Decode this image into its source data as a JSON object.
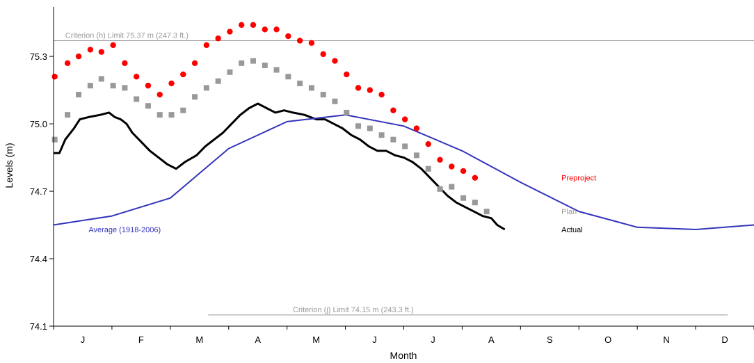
{
  "chart_data": {
    "type": "line",
    "title": "",
    "xlabel": "Month",
    "ylabel": "Levels (m)",
    "ylim": [
      74.1,
      75.52
    ],
    "xlim": [
      0,
      12
    ],
    "yticks": [
      "74.1",
      "74.4",
      "74.7",
      "75.0",
      "75.3"
    ],
    "month_labels": [
      "J",
      "F",
      "M",
      "A",
      "M",
      "J",
      "J",
      "A",
      "S",
      "O",
      "N",
      "D"
    ],
    "grid": false,
    "criteria": [
      {
        "label": "Criterion (h) Limit 75.37 m (247.3 ft.)",
        "value": 75.37,
        "x_range": [
          0,
          12
        ],
        "label_at": 0.2,
        "color": "#999999"
      },
      {
        "label": "Criterion (j) Limit 74.15 m (243.3 ft.)",
        "value": 74.15,
        "x_range": [
          2.65,
          11.55
        ],
        "label_at": 4.1,
        "color": "#999999"
      }
    ],
    "series": [
      {
        "name": "Preproject",
        "style": "circle",
        "color": "#ff0000",
        "label_at": [
          8.7,
          74.76
        ],
        "points": [
          [
            0.02,
            75.21
          ],
          [
            0.24,
            75.27
          ],
          [
            0.43,
            75.3
          ],
          [
            0.63,
            75.33
          ],
          [
            0.82,
            75.32
          ],
          [
            1.02,
            75.35
          ],
          [
            1.22,
            75.27
          ],
          [
            1.42,
            75.21
          ],
          [
            1.62,
            75.17
          ],
          [
            1.82,
            75.13
          ],
          [
            2.02,
            75.18
          ],
          [
            2.22,
            75.22
          ],
          [
            2.42,
            75.27
          ],
          [
            2.62,
            75.35
          ],
          [
            2.82,
            75.38
          ],
          [
            3.02,
            75.41
          ],
          [
            3.22,
            75.44
          ],
          [
            3.42,
            75.44
          ],
          [
            3.62,
            75.42
          ],
          [
            3.82,
            75.42
          ],
          [
            4.02,
            75.39
          ],
          [
            4.22,
            75.37
          ],
          [
            4.42,
            75.36
          ],
          [
            4.62,
            75.31
          ],
          [
            4.82,
            75.28
          ],
          [
            5.02,
            75.22
          ],
          [
            5.22,
            75.16
          ],
          [
            5.42,
            75.15
          ],
          [
            5.62,
            75.13
          ],
          [
            5.82,
            75.06
          ],
          [
            6.02,
            75.02
          ],
          [
            6.22,
            74.98
          ],
          [
            6.42,
            74.91
          ],
          [
            6.62,
            74.84
          ],
          [
            6.82,
            74.81
          ],
          [
            7.02,
            74.79
          ],
          [
            7.22,
            74.76
          ]
        ]
      },
      {
        "name": "Plan",
        "style": "square",
        "color": "#999999",
        "label_at": [
          8.7,
          74.61
        ],
        "points": [
          [
            0.02,
            74.93
          ],
          [
            0.24,
            75.04
          ],
          [
            0.43,
            75.13
          ],
          [
            0.63,
            75.17
          ],
          [
            0.82,
            75.2
          ],
          [
            1.02,
            75.17
          ],
          [
            1.22,
            75.16
          ],
          [
            1.42,
            75.11
          ],
          [
            1.62,
            75.08
          ],
          [
            1.82,
            75.04
          ],
          [
            2.02,
            75.04
          ],
          [
            2.22,
            75.06
          ],
          [
            2.42,
            75.12
          ],
          [
            2.62,
            75.16
          ],
          [
            2.82,
            75.19
          ],
          [
            3.02,
            75.23
          ],
          [
            3.22,
            75.27
          ],
          [
            3.42,
            75.28
          ],
          [
            3.62,
            75.26
          ],
          [
            3.82,
            75.24
          ],
          [
            4.02,
            75.21
          ],
          [
            4.22,
            75.18
          ],
          [
            4.42,
            75.16
          ],
          [
            4.62,
            75.13
          ],
          [
            4.82,
            75.1
          ],
          [
            5.02,
            75.05
          ],
          [
            5.22,
            74.99
          ],
          [
            5.42,
            74.98
          ],
          [
            5.62,
            74.95
          ],
          [
            5.82,
            74.93
          ],
          [
            6.02,
            74.9
          ],
          [
            6.22,
            74.86
          ],
          [
            6.42,
            74.8
          ],
          [
            6.62,
            74.71
          ],
          [
            6.82,
            74.72
          ],
          [
            7.02,
            74.67
          ],
          [
            7.22,
            74.65
          ],
          [
            7.42,
            74.61
          ]
        ]
      },
      {
        "name": "Actual",
        "style": "line",
        "color": "#000000",
        "width": 3,
        "label_at": [
          8.7,
          74.53
        ],
        "points": [
          [
            0,
            74.87
          ],
          [
            0.1,
            74.87
          ],
          [
            0.2,
            74.93
          ],
          [
            0.35,
            74.98
          ],
          [
            0.45,
            75.02
          ],
          [
            0.6,
            75.03
          ],
          [
            0.8,
            75.04
          ],
          [
            0.95,
            75.05
          ],
          [
            1.05,
            75.03
          ],
          [
            1.15,
            75.02
          ],
          [
            1.25,
            75.0
          ],
          [
            1.35,
            74.96
          ],
          [
            1.5,
            74.92
          ],
          [
            1.65,
            74.88
          ],
          [
            1.8,
            74.85
          ],
          [
            1.95,
            74.82
          ],
          [
            2.1,
            74.8
          ],
          [
            2.25,
            74.83
          ],
          [
            2.45,
            74.86
          ],
          [
            2.6,
            74.9
          ],
          [
            2.75,
            74.93
          ],
          [
            2.9,
            74.96
          ],
          [
            3.05,
            75.0
          ],
          [
            3.2,
            75.04
          ],
          [
            3.35,
            75.07
          ],
          [
            3.5,
            75.09
          ],
          [
            3.65,
            75.07
          ],
          [
            3.8,
            75.05
          ],
          [
            3.95,
            75.06
          ],
          [
            4.1,
            75.05
          ],
          [
            4.3,
            75.04
          ],
          [
            4.5,
            75.02
          ],
          [
            4.65,
            75.02
          ],
          [
            4.8,
            75.0
          ],
          [
            4.95,
            74.98
          ],
          [
            5.1,
            74.95
          ],
          [
            5.25,
            74.93
          ],
          [
            5.4,
            74.9
          ],
          [
            5.55,
            74.88
          ],
          [
            5.7,
            74.88
          ],
          [
            5.85,
            74.86
          ],
          [
            6.0,
            74.85
          ],
          [
            6.15,
            74.83
          ],
          [
            6.3,
            74.8
          ],
          [
            6.45,
            74.76
          ],
          [
            6.6,
            74.72
          ],
          [
            6.75,
            74.68
          ],
          [
            6.9,
            74.65
          ],
          [
            7.05,
            74.63
          ],
          [
            7.2,
            74.61
          ],
          [
            7.35,
            74.59
          ],
          [
            7.5,
            74.58
          ],
          [
            7.6,
            74.55
          ],
          [
            7.73,
            74.53
          ]
        ]
      },
      {
        "name": "Average (1918-2006)",
        "style": "line",
        "color": "#3333bb",
        "width": 2,
        "label_at": [
          0.6,
          74.53
        ],
        "points": [
          [
            0,
            74.55
          ],
          [
            1,
            74.59
          ],
          [
            2,
            74.67
          ],
          [
            3,
            74.89
          ],
          [
            4,
            75.01
          ],
          [
            5,
            75.04
          ],
          [
            6,
            74.99
          ],
          [
            7,
            74.88
          ],
          [
            8,
            74.74
          ],
          [
            9,
            74.61
          ],
          [
            10,
            74.54
          ],
          [
            11,
            74.53
          ],
          [
            12,
            74.55
          ]
        ]
      }
    ]
  }
}
